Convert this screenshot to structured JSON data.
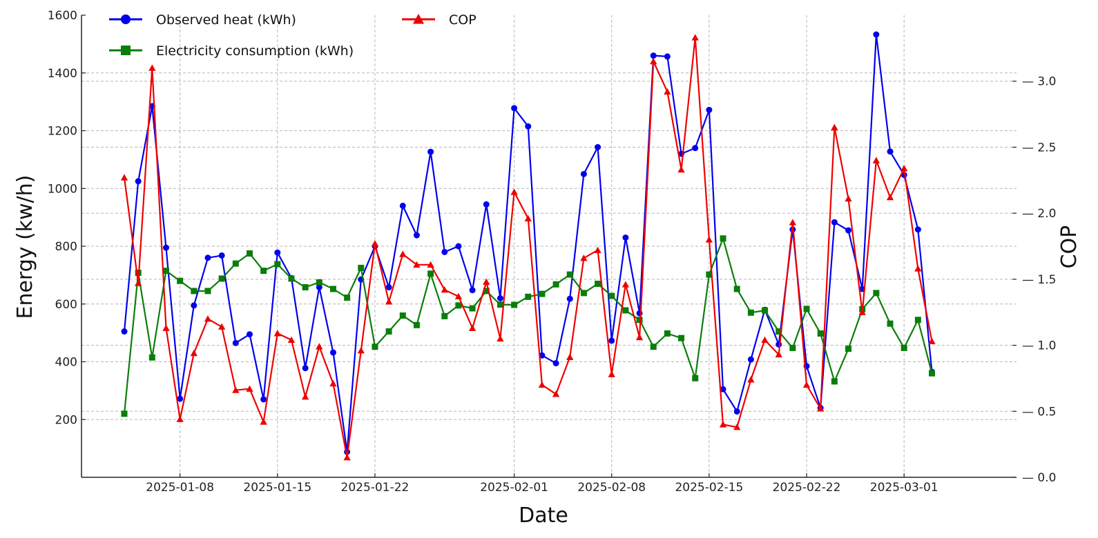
{
  "chart_data": {
    "type": "line",
    "xlabel": "Date",
    "ylabel": "Energy (kw/h)",
    "y2label": "COP",
    "x_start": "2025-01-04",
    "x_end": "2025-03-06",
    "xticks": [
      "2025-01-08",
      "2025-01-15",
      "2025-01-22",
      "2025-02-01",
      "2025-02-08",
      "2025-02-15",
      "2025-02-22",
      "2025-03-01"
    ],
    "ylim": [
      0,
      1600
    ],
    "yticks": [
      200,
      400,
      600,
      800,
      1000,
      1200,
      1400,
      1600
    ],
    "y2lim": [
      0,
      3.5
    ],
    "y2ticks": [
      "0.0",
      "0.5",
      "1.0",
      "1.5",
      "2.0",
      "2.5",
      "3.0"
    ],
    "grid": true,
    "legend": "top",
    "series": [
      {
        "name": "Observed heat (kWh)",
        "axis": "left",
        "color": "#0000ee",
        "marker": "circle",
        "values": [
          505,
          1025,
          1285,
          795,
          272,
          595,
          760,
          768,
          465,
          495,
          270,
          778,
          690,
          378,
          658,
          432,
          88,
          685,
          800,
          658,
          940,
          838,
          1127,
          780,
          800,
          648,
          945,
          620,
          1278,
          1215,
          422,
          395,
          618,
          1050,
          1143,
          473,
          830,
          568,
          1460,
          1457,
          1120,
          1140,
          1272,
          305,
          228,
          408,
          580,
          460,
          858,
          385,
          240,
          883,
          855,
          652,
          1533,
          1128,
          1047,
          858,
          365
        ]
      },
      {
        "name": "Electricity consumption (kWh)",
        "axis": "left",
        "color": "#0a7d0a",
        "marker": "square",
        "values": [
          220,
          708,
          415,
          715,
          680,
          645,
          645,
          688,
          740,
          775,
          715,
          738,
          688,
          658,
          675,
          652,
          622,
          725,
          452,
          505,
          560,
          527,
          705,
          558,
          595,
          585,
          645,
          598,
          597,
          625,
          635,
          668,
          702,
          638,
          670,
          628,
          578,
          545,
          452,
          498,
          482,
          343,
          702,
          827,
          652,
          570,
          578,
          505,
          448,
          583,
          498,
          332,
          445,
          582,
          638,
          532,
          448,
          545,
          360
        ]
      },
      {
        "name": "COP",
        "axis": "right",
        "color": "#ee0000",
        "marker": "triangle",
        "values": [
          2.27,
          1.47,
          3.1,
          1.13,
          0.44,
          0.94,
          1.2,
          1.14,
          0.66,
          0.67,
          0.42,
          1.09,
          1.04,
          0.61,
          0.99,
          0.71,
          0.15,
          0.96,
          1.77,
          1.33,
          1.69,
          1.61,
          1.61,
          1.42,
          1.37,
          1.13,
          1.48,
          1.05,
          2.16,
          1.96,
          0.7,
          0.63,
          0.91,
          1.66,
          1.72,
          0.78,
          1.46,
          1.06,
          3.15,
          2.92,
          2.33,
          3.33,
          1.8,
          0.4,
          0.38,
          0.74,
          1.04,
          0.93,
          1.93,
          0.7,
          0.52,
          2.65,
          2.11,
          1.25,
          2.4,
          2.12,
          2.34,
          1.58,
          1.03
        ]
      }
    ]
  }
}
